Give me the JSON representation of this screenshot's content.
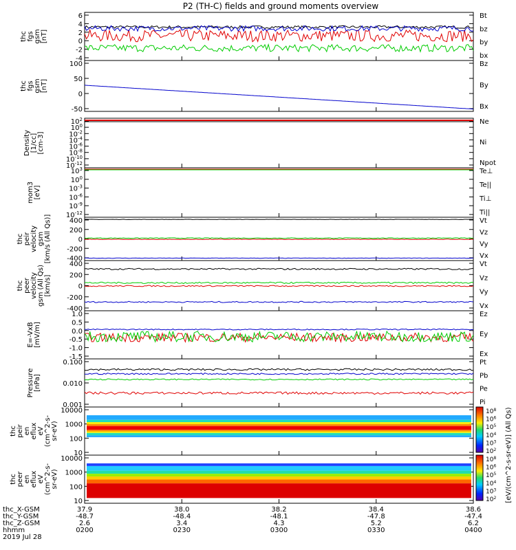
{
  "title": "P2 (TH-C) fields and ground moments overview",
  "colors": {
    "black": "#000000",
    "red": "#e00000",
    "green": "#00cc00",
    "blue": "#0000cc"
  },
  "chart_data": [
    {
      "type": "line",
      "panel": "fgs_gsm",
      "ylabel": [
        "thc",
        "fgs",
        "gsm",
        "[nT]"
      ],
      "yticks": [
        "6",
        "4",
        "2",
        "0",
        "-2",
        "-4"
      ],
      "ylim": [
        -4,
        6.5
      ],
      "legend": [
        {
          "name": "Bt",
          "color": "#000000"
        },
        {
          "name": "bz",
          "color": "#e00000"
        },
        {
          "name": "by",
          "color": "#00cc00"
        },
        {
          "name": "bx",
          "color": "#0000cc"
        }
      ],
      "series": [
        {
          "name": "Bt",
          "base": 3.3,
          "noise": 0.3
        },
        {
          "name": "bz",
          "base": 1.4,
          "noise": 1.3
        },
        {
          "name": "by",
          "base": -1.3,
          "noise": 0.8
        },
        {
          "name": "bx",
          "base": 3.0,
          "noise": 0.6
        }
      ]
    },
    {
      "type": "line",
      "panel": "fgs_dsl",
      "ylabel": [
        "thc",
        "fgs",
        "gsm",
        "[nT]"
      ],
      "yticks": [
        "100",
        "50",
        "0",
        "-50"
      ],
      "ylim": [
        -70,
        105
      ],
      "legend": [
        {
          "name": "Bz",
          "color": "#e00000"
        },
        {
          "name": "By",
          "color": "#00cc00"
        },
        {
          "name": "Bx",
          "color": "#0000cc"
        }
      ],
      "series": [
        {
          "name": "Bx",
          "start": 20,
          "end": -62
        }
      ]
    },
    {
      "type": "line",
      "panel": "density",
      "ylabel": [
        "Density",
        "[1/cc]",
        "[cm-3]"
      ],
      "yticks": [
        "10^2",
        "10^0",
        "10^-2",
        "10^-4",
        "10^-6",
        "10^-8",
        "10^-10",
        "10^-12"
      ],
      "legend": [
        {
          "name": "Ne",
          "color": "#e00000"
        },
        {
          "name": "Ni",
          "color": "#000000"
        },
        {
          "name": "Npot",
          "color": "#0000cc"
        }
      ]
    },
    {
      "type": "line",
      "panel": "temperature",
      "ylabel": [
        "mom3",
        "[eV]"
      ],
      "yticks": [
        "10^3",
        "10^0",
        "10^-3",
        "10^-6",
        "10^-9",
        "10^-12"
      ],
      "legend": [
        {
          "name": "Te⊥",
          "color": "#e00000"
        },
        {
          "name": "Te||",
          "color": "#000000"
        },
        {
          "name": "Ti⊥",
          "color": "#0000cc"
        },
        {
          "name": "Ti||",
          "color": "#00cc00"
        }
      ]
    },
    {
      "type": "line",
      "panel": "peir_velocity",
      "ylabel": [
        "thc",
        "peir",
        "velocity",
        "gsm",
        "[km/s (All Qs)]"
      ],
      "yticks": [
        "400",
        "200",
        "0",
        "-200",
        "-400"
      ],
      "ylim": [
        -400,
        400
      ],
      "legend": [
        {
          "name": "Vt",
          "color": "#000000"
        },
        {
          "name": "Vz",
          "color": "#e00000"
        },
        {
          "name": "Vy",
          "color": "#00cc00"
        },
        {
          "name": "Vx",
          "color": "#0000cc"
        }
      ],
      "series": [
        {
          "name": "Vt",
          "base": 360,
          "noise": 3
        },
        {
          "name": "Vz",
          "base": -8,
          "noise": 4
        },
        {
          "name": "Vy",
          "base": 15,
          "noise": 6
        },
        {
          "name": "Vx",
          "base": -355,
          "noise": 3
        }
      ]
    },
    {
      "type": "line",
      "panel": "peer_velocity",
      "ylabel": [
        "thc",
        "peer",
        "velocity",
        "gsm (All Qs)",
        "[km/s]"
      ],
      "yticks": [
        "400",
        "200",
        "0",
        "-200",
        "-400"
      ],
      "ylim": [
        -400,
        400
      ],
      "legend": [
        {
          "name": "Vt",
          "color": "#000000"
        },
        {
          "name": "Vz",
          "color": "#e00000"
        },
        {
          "name": "Vy",
          "color": "#00cc00"
        },
        {
          "name": "Vx",
          "color": "#0000cc"
        }
      ],
      "series": [
        {
          "name": "Vt",
          "base": 265,
          "noise": 12
        },
        {
          "name": "Vz",
          "base": -5,
          "noise": 10
        },
        {
          "name": "Vy",
          "base": 45,
          "noise": 12
        },
        {
          "name": "Vx",
          "base": -260,
          "noise": 10
        }
      ]
    },
    {
      "type": "line",
      "panel": "efield",
      "ylabel": [
        "E=-VxB",
        "[mV/m]"
      ],
      "yticks": [
        "1.0",
        "0.5",
        "0.0",
        "-0.5",
        "-1.0",
        "-1.5"
      ],
      "ylim": [
        -1.6,
        1.1
      ],
      "legend": [
        {
          "name": "Ez",
          "color": "#e00000"
        },
        {
          "name": "Ey",
          "color": "#00cc00"
        },
        {
          "name": "Ex",
          "color": "#0000cc"
        }
      ],
      "series": [
        {
          "name": "Ez",
          "base": -0.4,
          "noise": 0.25
        },
        {
          "name": "Ey",
          "base": -0.35,
          "noise": 0.3
        },
        {
          "name": "Ex",
          "base": 0.05,
          "noise": 0.03
        }
      ]
    },
    {
      "type": "line",
      "panel": "pressure",
      "ylabel": [
        "Pressure",
        "[nPa]"
      ],
      "yticks": [
        "0.100",
        "0.010",
        "0.001"
      ],
      "ylog": true,
      "ylim": [
        0.001,
        0.1
      ],
      "legend": [
        {
          "name": "Pt",
          "color": "#000000"
        },
        {
          "name": "Pb",
          "color": "#e00000"
        },
        {
          "name": "Pe",
          "color": "#00cc00"
        },
        {
          "name": "Pi",
          "color": "#0000cc"
        }
      ],
      "series": [
        {
          "name": "Pt",
          "base": 0.036,
          "noise": 0.08
        },
        {
          "name": "Pb",
          "base": 0.0038,
          "noise": 0.1
        },
        {
          "name": "Pe",
          "base": 0.014,
          "noise": 0.05
        },
        {
          "name": "Pi",
          "base": 0.024,
          "noise": 0.06
        }
      ]
    },
    {
      "type": "heatmap",
      "panel": "peir_eflux",
      "ylabel": [
        "thc",
        "peir",
        "en",
        "eflux",
        "eV",
        "(cm^2-s-",
        "sr-eV)"
      ],
      "yticks": [
        "10000",
        "1000",
        "100",
        "10"
      ],
      "ylog": true,
      "ylim": [
        5,
        30000
      ]
    },
    {
      "type": "heatmap",
      "panel": "peer_eflux",
      "ylabel": [
        "thc",
        "peer",
        "en",
        "eflux",
        "eV",
        "(cm^2-s-",
        "sr-eV)"
      ],
      "yticks": [
        "10000",
        "1000",
        "100",
        "10"
      ],
      "ylog": true,
      "ylim": [
        5,
        30000
      ]
    }
  ],
  "colorbar": {
    "label": "[eV/(cm^2-s-sr-eV)] (All Qs)",
    "ticks_top": [
      "10^8",
      "10^6",
      "10^5",
      "10^4",
      "10^3",
      "10^2"
    ],
    "ticks_bottom": [
      "10^8",
      "10^6",
      "10^5",
      "10^4",
      "10^3",
      "10^2"
    ]
  },
  "footer": {
    "row_labels": [
      "thc_X-GSM",
      "thc_Y-GSM",
      "thc_Z-GSM",
      "hhmm",
      "2019 Jul 28"
    ],
    "columns": [
      [
        "37.9",
        "-48.7",
        "2.6",
        "0200"
      ],
      [
        "38.0",
        "-48.4",
        "3.4",
        "0230"
      ],
      [
        "38.2",
        "-48.1",
        "4.3",
        "0300"
      ],
      [
        "38.4",
        "-47.8",
        "5.2",
        "0330"
      ],
      [
        "38.6",
        "-47.4",
        "6.2",
        "0400"
      ]
    ]
  }
}
